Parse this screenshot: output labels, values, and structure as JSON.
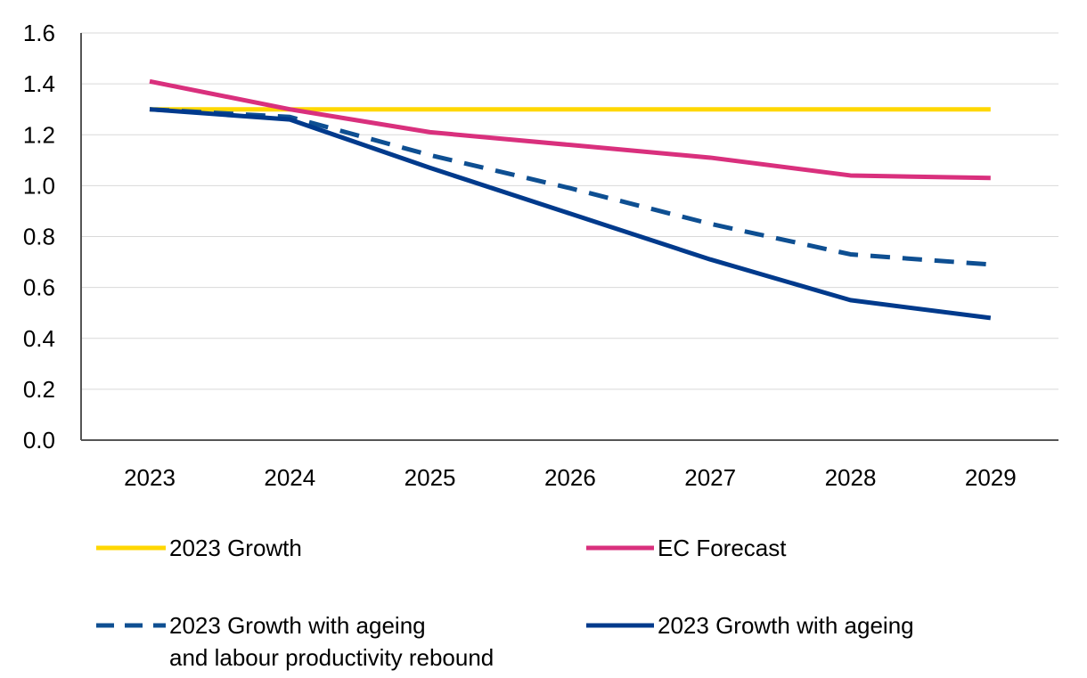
{
  "chart_data": {
    "type": "line",
    "x": [
      "2023",
      "2024",
      "2025",
      "2026",
      "2027",
      "2028",
      "2029"
    ],
    "ylim": [
      0,
      1.6
    ],
    "yticks": [
      "0.0",
      "0.2",
      "0.4",
      "0.6",
      "0.8",
      "1.0",
      "1.2",
      "1.4",
      "1.6"
    ],
    "grid": true,
    "legend_position": "bottom",
    "series": [
      {
        "name": "2023 Growth",
        "values": [
          1.3,
          1.3,
          1.3,
          1.3,
          1.3,
          1.3,
          1.3
        ],
        "color": "#FFD700",
        "dash": false
      },
      {
        "name": "EC Forecast",
        "values": [
          1.41,
          1.3,
          1.21,
          1.16,
          1.11,
          1.04,
          1.03
        ],
        "color": "#D9307D",
        "dash": false
      },
      {
        "name": "2023 Growth with ageing",
        "name_line2": "and labour productivity rebound",
        "values": [
          1.3,
          1.27,
          1.12,
          0.99,
          0.85,
          0.73,
          0.69
        ],
        "color": "#0E4F92",
        "dash": true
      },
      {
        "name": "2023 Growth with ageing",
        "values": [
          1.3,
          1.26,
          1.07,
          0.89,
          0.71,
          0.55,
          0.48
        ],
        "color": "#003A8C",
        "dash": false
      }
    ]
  }
}
